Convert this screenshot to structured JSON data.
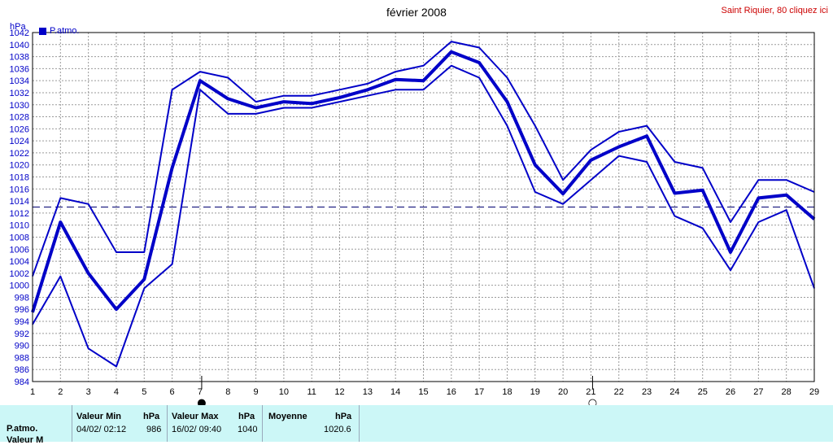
{
  "header": {
    "title": "février 2008",
    "station_link": "Saint Riquier, 80 cliquez ici",
    "unit_label": "hPa",
    "legend_label": "P.atmo."
  },
  "chart_data": {
    "type": "line",
    "title": "février 2008",
    "ylabel": "hPa",
    "ylim": [
      984,
      1042
    ],
    "ytick_step": 2,
    "x": [
      1,
      2,
      3,
      4,
      5,
      6,
      7,
      8,
      9,
      10,
      11,
      12,
      13,
      14,
      15,
      16,
      17,
      18,
      19,
      20,
      21,
      22,
      23,
      24,
      25,
      26,
      27,
      28,
      29
    ],
    "grid": true,
    "reference_line": 1013,
    "series": [
      {
        "name": "P.atmo.",
        "role": "max",
        "color": "#0000c8",
        "values": [
          1001.5,
          1014.5,
          1013.5,
          1005.5,
          1005.5,
          1032.5,
          1035.5,
          1034.5,
          1030.5,
          1031.5,
          1031.5,
          1032.5,
          1033.5,
          1035.5,
          1036.5,
          1040.5,
          1039.5,
          1034.5,
          1026.5,
          1017.5,
          1022.5,
          1025.5,
          1026.5,
          1020.5,
          1019.5,
          1010.5,
          1017.5,
          1017.5,
          1015.5
        ]
      },
      {
        "name": "P.atmo.",
        "role": "mean",
        "color": "#0000c8",
        "values": [
          995.5,
          1010.5,
          1002,
          996,
          1001,
          1019.5,
          1034,
          1031,
          1029.5,
          1030.5,
          1030.2,
          1031.2,
          1032.5,
          1034.2,
          1034,
          1038.8,
          1037,
          1030.5,
          1020,
          1015.2,
          1020.8,
          1023,
          1024.8,
          1015.3,
          1015.8,
          1005.5,
          1014.5,
          1015,
          1011
        ]
      },
      {
        "name": "P.atmo.",
        "role": "min",
        "color": "#0000c8",
        "values": [
          993.5,
          1001.5,
          989.5,
          986.5,
          999.5,
          1003.5,
          1032.5,
          1028.5,
          1028.5,
          1029.5,
          1029.5,
          1030.5,
          1031.5,
          1032.5,
          1032.5,
          1036.5,
          1034.5,
          1026.5,
          1015.5,
          1013.5,
          1017.5,
          1021.5,
          1020.5,
          1011.5,
          1009.5,
          1002.5,
          1010.5,
          1012.5,
          999.5
        ]
      }
    ],
    "markers": [
      {
        "x": 7,
        "symbol": "●"
      },
      {
        "x": 21,
        "symbol": "○"
      }
    ]
  },
  "stats": {
    "row_label": "P.atmo.",
    "row_label_2": "Valeur M",
    "min_label": "Valeur Min",
    "min_unit": "hPa",
    "min_date": "04/02/  02:12",
    "min_value": "986",
    "max_label": "Valeur Max",
    "max_unit": "hPa",
    "max_date": "16/02/  09:40",
    "max_value": "1040",
    "mean_label": "Moyenne",
    "mean_unit": "hPa",
    "mean_value": "1020.6"
  }
}
